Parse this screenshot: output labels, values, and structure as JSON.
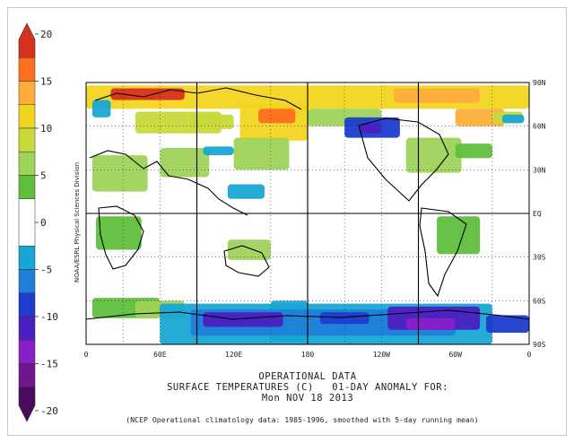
{
  "chart_data": {
    "type": "heatmap",
    "colorbar": {
      "ticks": [
        20,
        15,
        10,
        5,
        0,
        -5,
        -10,
        -15,
        -20
      ],
      "bands": [
        {
          "from": 17.5,
          "to": 20,
          "color": "#d7301f"
        },
        {
          "from": 15,
          "to": 17.5,
          "color": "#fc6f1f"
        },
        {
          "from": 12.5,
          "to": 15,
          "color": "#fdae3a"
        },
        {
          "from": 10,
          "to": 12.5,
          "color": "#f2d520"
        },
        {
          "from": 7.5,
          "to": 10,
          "color": "#c8d93a"
        },
        {
          "from": 5,
          "to": 7.5,
          "color": "#9fd35a"
        },
        {
          "from": 2.5,
          "to": 5,
          "color": "#5fbf3d"
        },
        {
          "from": -2.5,
          "to": 2.5,
          "color": "#ffffff"
        },
        {
          "from": -5,
          "to": -2.5,
          "color": "#18a7d4"
        },
        {
          "from": -7.5,
          "to": -5,
          "color": "#1f7fd8"
        },
        {
          "from": -10,
          "to": -7.5,
          "color": "#1e3ccd"
        },
        {
          "from": -12.5,
          "to": -10,
          "color": "#4b1fc2"
        },
        {
          "from": -15,
          "to": -12.5,
          "color": "#8a1fc9"
        },
        {
          "from": -17.5,
          "to": -15,
          "color": "#6e1690"
        },
        {
          "from": -20,
          "to": -17.5,
          "color": "#4a0b5e"
        }
      ]
    },
    "x_ticks": [
      "0",
      "60E",
      "120E",
      "180",
      "120W",
      "60W",
      "0"
    ],
    "y_ticks": [
      "90N",
      "60N",
      "30N",
      "EQ",
      "30S",
      "60S",
      "90S"
    ],
    "lon_range": [
      0,
      360
    ],
    "lat_range": [
      90,
      -90
    ],
    "grid": true,
    "anomaly_regions": [
      {
        "lon0": 0,
        "lon1": 360,
        "lat0": 88,
        "lat1": 72,
        "value": 11
      },
      {
        "lon0": 20,
        "lon1": 80,
        "lat0": 86,
        "lat1": 78,
        "value": 18
      },
      {
        "lon0": 250,
        "lon1": 320,
        "lat0": 86,
        "lat1": 76,
        "value": 13
      },
      {
        "lon0": 40,
        "lon1": 110,
        "lat0": 70,
        "lat1": 55,
        "value": 9
      },
      {
        "lon0": 85,
        "lon1": 120,
        "lat0": 68,
        "lat1": 58,
        "value": 8
      },
      {
        "lon0": 125,
        "lon1": 180,
        "lat0": 75,
        "lat1": 50,
        "value": 11
      },
      {
        "lon0": 140,
        "lon1": 170,
        "lat0": 72,
        "lat1": 62,
        "value": 15
      },
      {
        "lon0": 300,
        "lon1": 340,
        "lat0": 72,
        "lat1": 60,
        "value": 13
      },
      {
        "lon0": 330,
        "lon1": 355,
        "lat0": 70,
        "lat1": 62,
        "value": 8
      },
      {
        "lon0": 180,
        "lon1": 240,
        "lat0": 72,
        "lat1": 60,
        "value": 6
      },
      {
        "lon0": 120,
        "lon1": 165,
        "lat0": 52,
        "lat1": 30,
        "value": 6
      },
      {
        "lon0": 5,
        "lon1": 50,
        "lat0": 40,
        "lat1": 15,
        "value": 5
      },
      {
        "lon0": 60,
        "lon1": 100,
        "lat0": 45,
        "lat1": 25,
        "value": 6
      },
      {
        "lon0": 260,
        "lon1": 305,
        "lat0": 52,
        "lat1": 28,
        "value": 7
      },
      {
        "lon0": 300,
        "lon1": 330,
        "lat0": 48,
        "lat1": 38,
        "value": 4
      },
      {
        "lon0": 8,
        "lon1": 45,
        "lat0": -2,
        "lat1": -25,
        "value": 4
      },
      {
        "lon0": 115,
        "lon1": 150,
        "lat0": -18,
        "lat1": -32,
        "value": 6
      },
      {
        "lon0": 285,
        "lon1": 320,
        "lat0": -2,
        "lat1": -28,
        "value": 4
      },
      {
        "lon0": 5,
        "lon1": 60,
        "lat0": -58,
        "lat1": -72,
        "value": 3
      },
      {
        "lon0": 40,
        "lon1": 80,
        "lat0": -60,
        "lat1": -72,
        "value": 7
      }
    ],
    "cold_regions": [
      {
        "lon0": 210,
        "lon1": 255,
        "lat0": 66,
        "lat1": 52,
        "value": -8
      },
      {
        "lon0": 222,
        "lon1": 240,
        "lat0": 62,
        "lat1": 55,
        "value": -12
      },
      {
        "lon0": 5,
        "lon1": 20,
        "lat0": 78,
        "lat1": 66,
        "value": -4
      },
      {
        "lon0": 338,
        "lon1": 356,
        "lat0": 68,
        "lat1": 62,
        "value": -4
      },
      {
        "lon0": 95,
        "lon1": 120,
        "lat0": 46,
        "lat1": 40,
        "value": -4
      },
      {
        "lon0": 115,
        "lon1": 145,
        "lat0": 20,
        "lat1": 10,
        "value": -4
      },
      {
        "lon0": 150,
        "lon1": 180,
        "lat0": -60,
        "lat1": -88,
        "value": -4
      },
      {
        "lon0": 60,
        "lon1": 330,
        "lat0": -62,
        "lat1": -90,
        "value": -4
      },
      {
        "lon0": 85,
        "lon1": 300,
        "lat0": -66,
        "lat1": -84,
        "value": -7
      },
      {
        "lon0": 95,
        "lon1": 160,
        "lat0": -68,
        "lat1": -78,
        "value": -12
      },
      {
        "lon0": 190,
        "lon1": 230,
        "lat0": -68,
        "lat1": -76,
        "value": -9
      },
      {
        "lon0": 245,
        "lon1": 320,
        "lat0": -64,
        "lat1": -80,
        "value": -11
      },
      {
        "lon0": 260,
        "lon1": 300,
        "lat0": -72,
        "lat1": -80,
        "value": -15
      },
      {
        "lon0": 325,
        "lon1": 360,
        "lat0": -70,
        "lat1": -82,
        "value": -8
      }
    ],
    "title": "OPERATIONAL DATA",
    "subtitle": "SURFACE TEMPERATURES (C)   01-DAY ANOMALY FOR:",
    "date": "Mon NOV 18 2013",
    "note": "(NCEP Operational climatology data: 1985-1996, smoothed with 5-day running mean)",
    "credit": "NOAA/ESRL Physical Sciences Division"
  }
}
